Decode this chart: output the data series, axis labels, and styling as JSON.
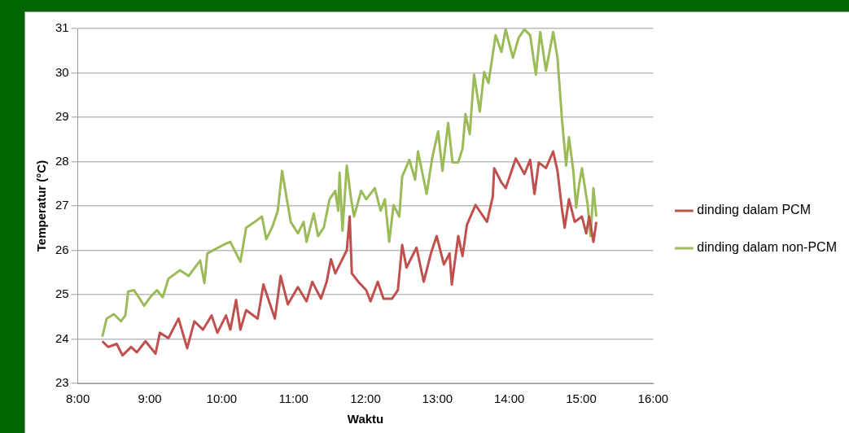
{
  "chart_data": {
    "type": "line",
    "xlabel": "Waktu",
    "ylabel": "Temperatur (°C)",
    "xlim": [
      8,
      16
    ],
    "xticks": [
      {
        "value": 8,
        "label": "8:00"
      },
      {
        "value": 9,
        "label": "9:00"
      },
      {
        "value": 10,
        "label": "10:00"
      },
      {
        "value": 11,
        "label": "11:00"
      },
      {
        "value": 12,
        "label": "12:00"
      },
      {
        "value": 13,
        "label": "13:00"
      },
      {
        "value": 14,
        "label": "14:00"
      },
      {
        "value": 15,
        "label": "15:00"
      },
      {
        "value": 16,
        "label": "16:00"
      }
    ],
    "ylim": [
      23,
      31
    ],
    "yticks": [
      23,
      24,
      25,
      26,
      27,
      28,
      29,
      30,
      31
    ],
    "grid": "y",
    "legend": "right",
    "marker": "none",
    "line_style": "solid",
    "series": [
      {
        "name": "dinding dalam PCM",
        "color": "#c0504d",
        "x": [
          8.34,
          8.42,
          8.54,
          8.62,
          8.74,
          8.82,
          8.94,
          9.08,
          9.14,
          9.26,
          9.4,
          9.52,
          9.62,
          9.74,
          9.86,
          9.94,
          10.06,
          10.12,
          10.2,
          10.26,
          10.34,
          10.5,
          10.58,
          10.74,
          10.82,
          10.92,
          11.06,
          11.18,
          11.26,
          11.38,
          11.46,
          11.52,
          11.58,
          11.66,
          11.74,
          11.78,
          11.81,
          11.9,
          12.01,
          12.07,
          12.17,
          12.25,
          12.37,
          12.45,
          12.51,
          12.57,
          12.71,
          12.81,
          12.91,
          12.99,
          13.09,
          13.17,
          13.2,
          13.29,
          13.35,
          13.41,
          13.53,
          13.61,
          13.69,
          13.77,
          13.79,
          13.89,
          13.95,
          14.09,
          14.21,
          14.29,
          14.35,
          14.41,
          14.51,
          14.61,
          14.67,
          14.73,
          14.77,
          14.83,
          14.91,
          15.01,
          15.07,
          15.11,
          15.17,
          15.21
        ],
        "values": [
          23.95,
          23.82,
          23.89,
          23.63,
          23.82,
          23.7,
          23.95,
          23.67,
          24.14,
          24.02,
          24.46,
          23.79,
          24.4,
          24.21,
          24.53,
          24.14,
          24.53,
          24.21,
          24.88,
          24.21,
          24.65,
          24.46,
          25.23,
          24.46,
          25.42,
          24.78,
          25.17,
          24.85,
          25.29,
          24.91,
          25.29,
          25.8,
          25.48,
          25.74,
          26,
          26.76,
          25.48,
          25.29,
          25.1,
          24.85,
          25.29,
          24.91,
          24.91,
          25.1,
          26.12,
          25.61,
          26.06,
          25.29,
          25.93,
          26.32,
          25.68,
          25.93,
          25.23,
          26.32,
          25.87,
          26.57,
          27.02,
          26.83,
          26.64,
          27.21,
          27.85,
          27.53,
          27.4,
          28.07,
          27.72,
          28.04,
          27.27,
          27.98,
          27.85,
          28.23,
          27.79,
          26.96,
          26.51,
          27.15,
          26.64,
          26.76,
          26.38,
          26.76,
          26.19,
          26.64
        ]
      },
      {
        "name": "dinding dalam non-PCM",
        "color": "#9bbb59",
        "x": [
          8.34,
          8.4,
          8.5,
          8.6,
          8.66,
          8.7,
          8.78,
          8.86,
          8.92,
          9.02,
          9.1,
          9.18,
          9.26,
          9.42,
          9.54,
          9.7,
          9.76,
          9.8,
          10.02,
          10.12,
          10.26,
          10.34,
          10.46,
          10.56,
          10.62,
          10.7,
          10.78,
          10.84,
          10.9,
          10.96,
          11.06,
          11.14,
          11.18,
          11.28,
          11.34,
          11.42,
          11.5,
          11.58,
          11.62,
          11.64,
          11.68,
          11.74,
          11.8,
          11.84,
          11.94,
          12.01,
          12.13,
          12.21,
          12.27,
          12.33,
          12.39,
          12.47,
          12.51,
          12.61,
          12.69,
          12.73,
          12.85,
          12.93,
          13.01,
          13.07,
          13.15,
          13.21,
          13.29,
          13.35,
          13.39,
          13.45,
          13.51,
          13.59,
          13.65,
          13.71,
          13.81,
          13.89,
          13.95,
          14.05,
          14.13,
          14.21,
          14.29,
          14.37,
          14.43,
          14.51,
          14.61,
          14.67,
          14.73,
          14.79,
          14.83,
          14.89,
          14.93,
          14.97,
          15.01,
          15.09,
          15.13,
          15.17,
          15.21
        ],
        "values": [
          24.05,
          24.46,
          24.56,
          24.4,
          24.53,
          25.07,
          25.1,
          24.91,
          24.75,
          24.97,
          25.1,
          24.94,
          25.36,
          25.55,
          25.42,
          25.77,
          25.26,
          25.93,
          26.12,
          26.19,
          25.74,
          26.51,
          26.64,
          26.76,
          26.25,
          26.51,
          26.89,
          27.79,
          27.21,
          26.64,
          26.38,
          26.64,
          26.19,
          26.83,
          26.32,
          26.51,
          27.15,
          27.34,
          26.89,
          27.75,
          26.44,
          27.91,
          27.15,
          26.76,
          27.34,
          27.15,
          27.4,
          26.89,
          27.15,
          26.19,
          27.02,
          26.76,
          27.66,
          28.04,
          27.59,
          28.23,
          27.27,
          28.1,
          28.68,
          27.79,
          28.87,
          27.98,
          27.98,
          28.3,
          29.07,
          28.62,
          29.96,
          29.13,
          30.02,
          29.77,
          30.85,
          30.47,
          30.98,
          30.34,
          30.79,
          30.98,
          30.85,
          29.96,
          30.92,
          30.05,
          30.92,
          30.34,
          29,
          27.91,
          28.55,
          27.79,
          26.96,
          27.47,
          27.85,
          27.02,
          26.32,
          27.4,
          26.76
        ]
      }
    ]
  }
}
